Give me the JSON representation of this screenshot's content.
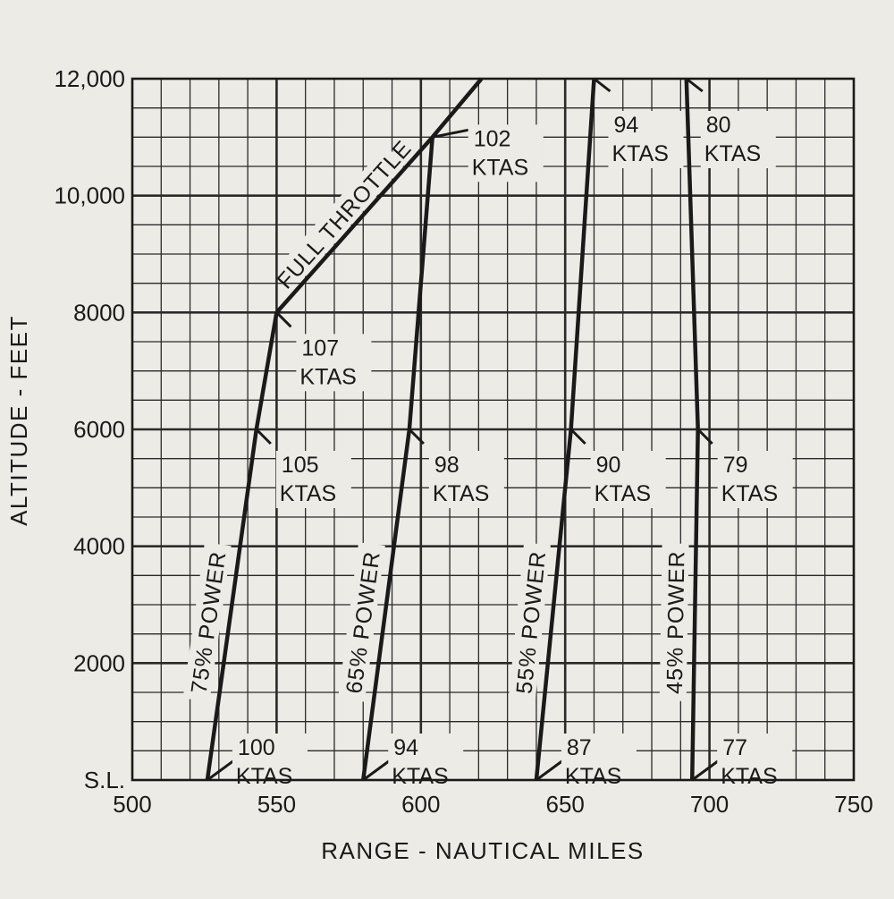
{
  "chart_data": {
    "type": "line",
    "xlabel": "RANGE - NAUTICAL MILES",
    "ylabel": "ALTITUDE - FEET",
    "xlim": [
      500,
      750
    ],
    "ylim": [
      0,
      12000
    ],
    "x_ticks": [
      {
        "value": 500,
        "label": "500"
      },
      {
        "value": 550,
        "label": "550"
      },
      {
        "value": 600,
        "label": "600"
      },
      {
        "value": 650,
        "label": "650"
      },
      {
        "value": 700,
        "label": "700"
      },
      {
        "value": 750,
        "label": "750"
      }
    ],
    "y_ticks": [
      {
        "value": 0,
        "label": "S.L."
      },
      {
        "value": 2000,
        "label": "2000"
      },
      {
        "value": 4000,
        "label": "4000"
      },
      {
        "value": 6000,
        "label": "6000"
      },
      {
        "value": 8000,
        "label": "8000"
      },
      {
        "value": 10000,
        "label": "10,000"
      },
      {
        "value": 12000,
        "label": "12,000"
      }
    ],
    "grid": true,
    "series": [
      {
        "name": "75% POWER",
        "x": [
          526,
          543,
          550
        ],
        "y": [
          0,
          6000,
          8000
        ]
      },
      {
        "name": "65% POWER",
        "x": [
          580,
          596,
          604
        ],
        "y": [
          0,
          6000,
          11000
        ]
      },
      {
        "name": "55% POWER",
        "x": [
          640,
          652,
          660
        ],
        "y": [
          0,
          6000,
          12000
        ]
      },
      {
        "name": "45% POWER",
        "x": [
          694,
          696,
          692
        ],
        "y": [
          0,
          6000,
          12000
        ]
      },
      {
        "name": "FULL THROTTLE",
        "x": [
          550,
          604,
          621
        ],
        "y": [
          8000,
          11000,
          12000
        ]
      }
    ],
    "annotations": [
      {
        "line1": "100",
        "line2": "KTAS",
        "x": 526,
        "y": 0
      },
      {
        "line1": "105",
        "line2": "KTAS",
        "x": 543,
        "y": 6000
      },
      {
        "line1": "107",
        "line2": "KTAS",
        "x": 550,
        "y": 8000
      },
      {
        "line1": "94",
        "line2": "KTAS",
        "x": 580,
        "y": 0
      },
      {
        "line1": "98",
        "line2": "KTAS",
        "x": 596,
        "y": 6000
      },
      {
        "line1": "102",
        "line2": "KTAS",
        "x": 604,
        "y": 11000
      },
      {
        "line1": "87",
        "line2": "KTAS",
        "x": 640,
        "y": 0
      },
      {
        "line1": "90",
        "line2": "KTAS",
        "x": 652,
        "y": 6000
      },
      {
        "line1": "94",
        "line2": "KTAS",
        "x": 660,
        "y": 12000
      },
      {
        "line1": "77",
        "line2": "KTAS",
        "x": 694,
        "y": 0
      },
      {
        "line1": "79",
        "line2": "KTAS",
        "x": 696,
        "y": 6000
      },
      {
        "line1": "80",
        "line2": "KTAS",
        "x": 692,
        "y": 12000
      }
    ]
  }
}
